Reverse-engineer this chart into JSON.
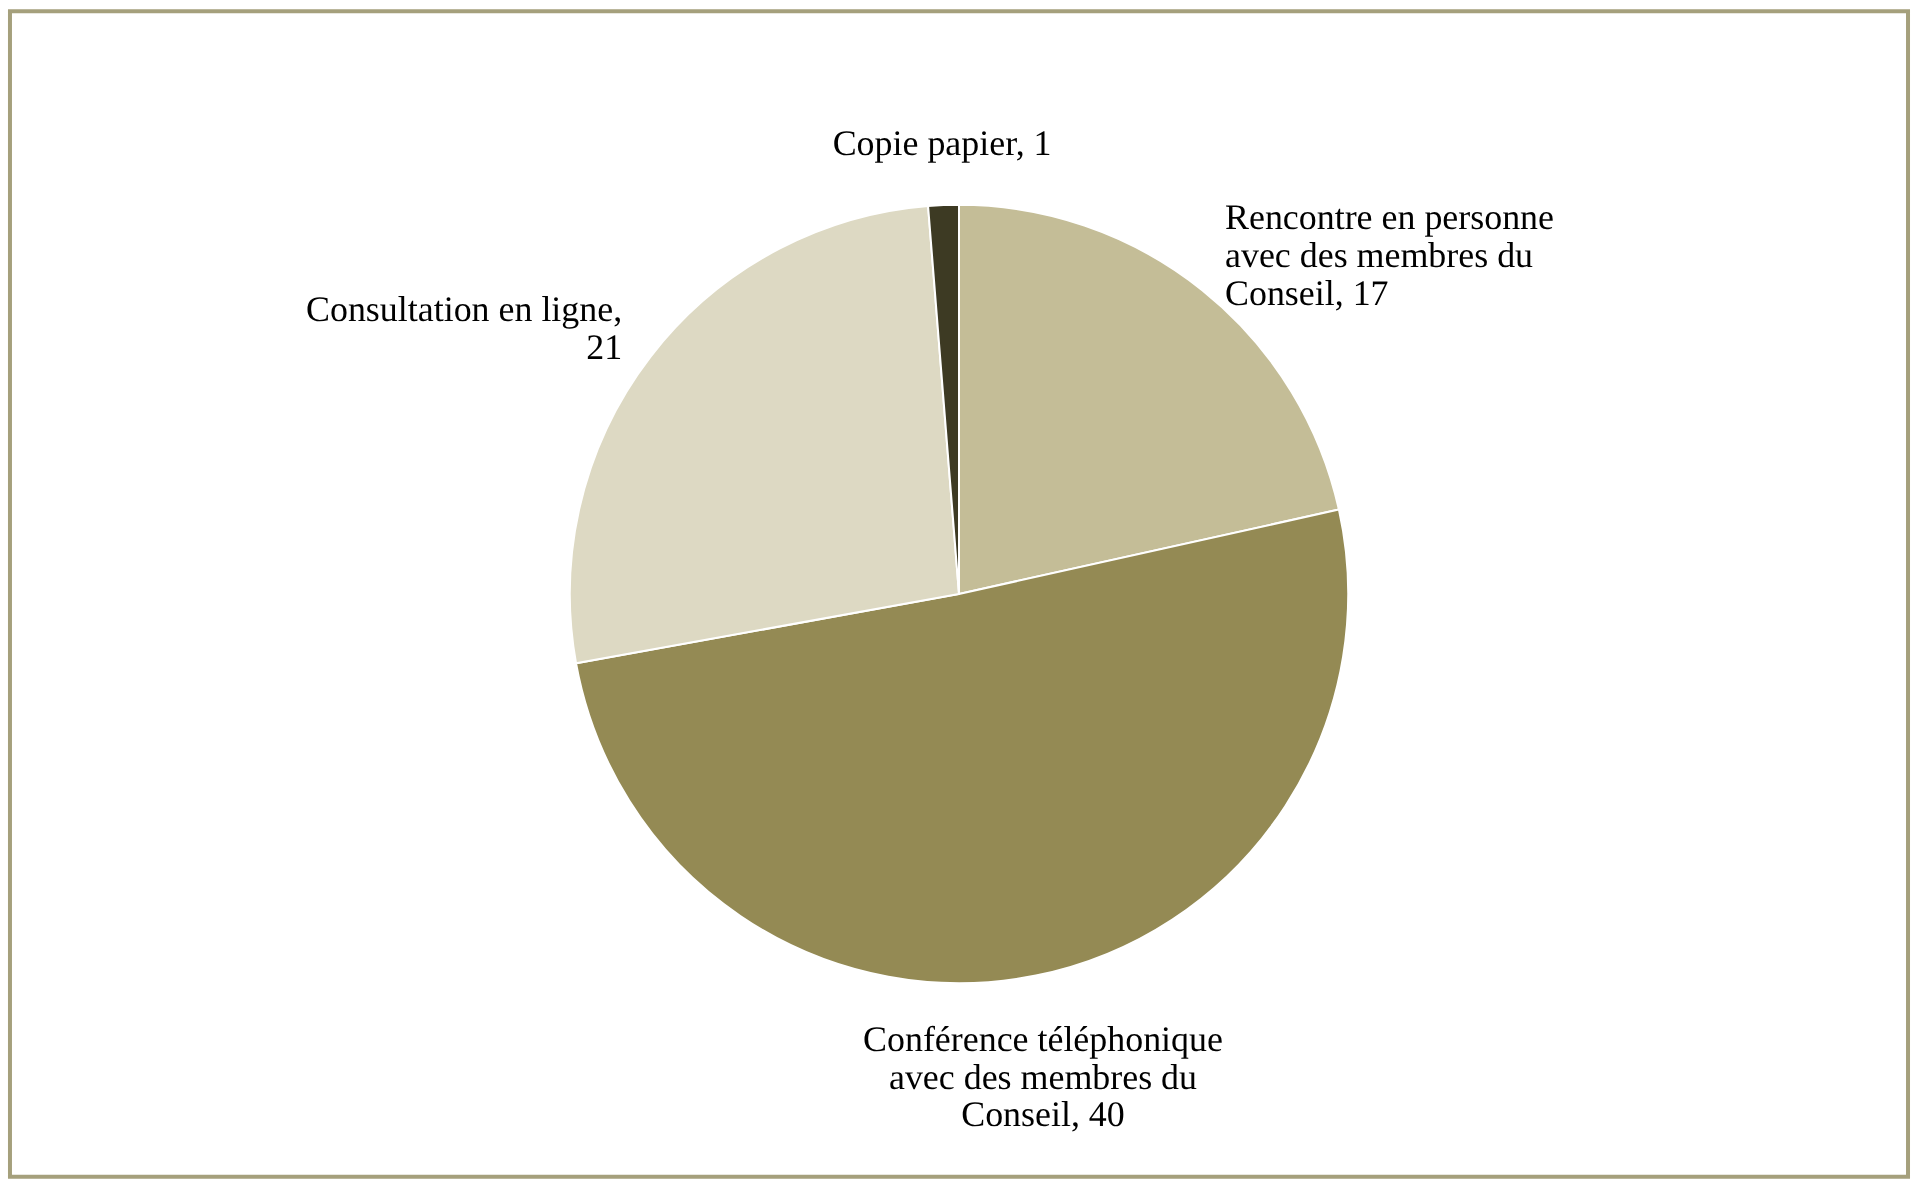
{
  "chart_data": {
    "type": "pie",
    "categories": [
      "Rencontre en personne avec des membres du Conseil, 17",
      "Conférence téléphonique avec des membres du Conseil, 40",
      "Consultation en ligne, 21",
      "Copie papier, 1"
    ],
    "values": [
      17,
      40,
      21,
      1
    ],
    "colors": [
      "#c4bd97",
      "#948a54",
      "#ddd9c3",
      "#3d3a23"
    ],
    "legend": false
  }
}
